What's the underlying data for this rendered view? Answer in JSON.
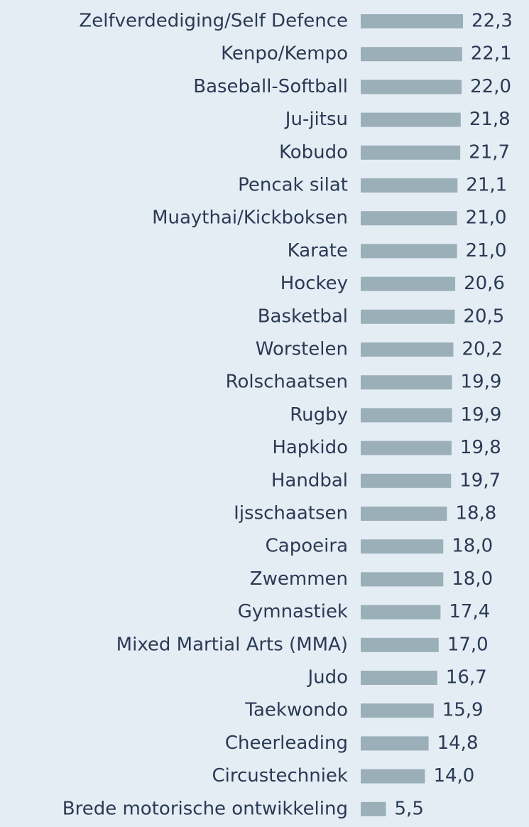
{
  "chart_data": {
    "type": "bar",
    "orientation": "horizontal",
    "color": "#9bafb9",
    "categories": [
      "Zelfverdediging/Self Defence",
      "Kenpo/Kempo",
      "Baseball-Softball",
      "Ju-jitsu",
      "Kobudo",
      "Pencak silat",
      "Muaythai/Kickboksen",
      "Karate",
      "Hockey",
      "Basketbal",
      "Worstelen",
      "Rolschaatsen",
      "Rugby",
      "Hapkido",
      "Handbal",
      "Ijsschaatsen",
      "Capoeira",
      "Zwemmen",
      "Gymnastiek",
      "Mixed Martial Arts (MMA)",
      "Judo",
      "Taekwondo",
      "Cheerleading",
      "Circustechniek",
      "Brede motorische ontwikkeling"
    ],
    "values": [
      22.3,
      22.1,
      22.0,
      21.8,
      21.7,
      21.1,
      21.0,
      21.0,
      20.6,
      20.5,
      20.2,
      19.9,
      19.9,
      19.8,
      19.7,
      18.8,
      18.0,
      18.0,
      17.4,
      17.0,
      16.7,
      15.9,
      14.8,
      14.0,
      5.5
    ],
    "value_labels": [
      "22,3",
      "22,1",
      "22,0",
      "21,8",
      "21,7",
      "21,1",
      "21,0",
      "21,0",
      "20,6",
      "20,5",
      "20,2",
      "19,9",
      "19,9",
      "19,8",
      "19,7",
      "18,8",
      "18,0",
      "18,0",
      "17,4",
      "17,0",
      "16,7",
      "15,9",
      "14,8",
      "14,0",
      "5,5"
    ]
  }
}
